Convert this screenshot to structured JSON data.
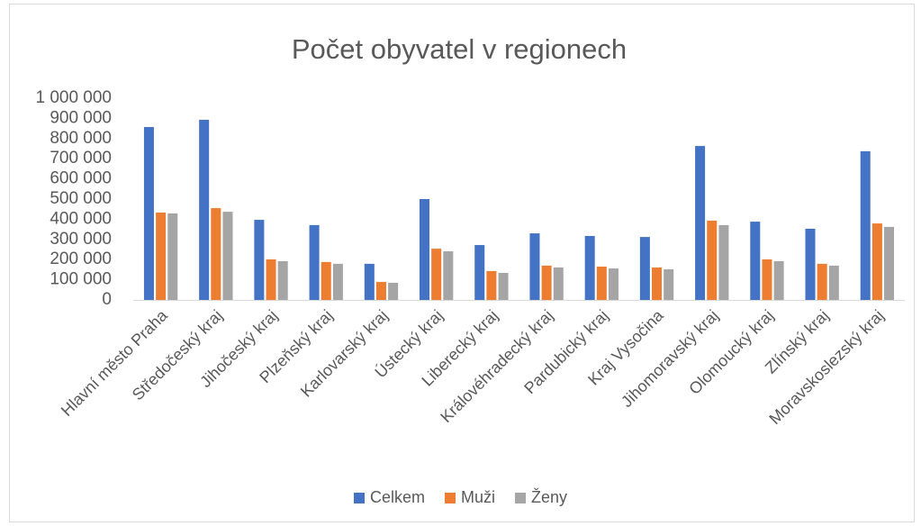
{
  "chart_data": {
    "type": "bar",
    "title": "Počet obyvatel v regionech",
    "categories": [
      "Hlavní město Praha",
      "Středočeský kraj",
      "Jihočeský kraj",
      "Plzeňský kraj",
      "Karlovarský kraj",
      "Ústecký kraj",
      "Liberecký kraj",
      "Královéhradecký kraj",
      "Pardubický kraj",
      "Kraj Vysočina",
      "Jihomoravský kraj",
      "Olomoucký kraj",
      "Zlínský kraj",
      "Moravskoslezský kraj"
    ],
    "series": [
      {
        "name": "Celkem",
        "color": "#4472c4",
        "values": [
          857000,
          893000,
          397000,
          371000,
          179000,
          500000,
          272000,
          330000,
          317000,
          312000,
          763000,
          388000,
          353000,
          737000
        ]
      },
      {
        "name": "Muži",
        "color": "#ed7d31",
        "values": [
          433000,
          455000,
          201000,
          188000,
          89000,
          254000,
          143000,
          170000,
          165000,
          161000,
          393000,
          201000,
          179000,
          379000
        ]
      },
      {
        "name": "Ženy",
        "color": "#a5a5a5",
        "values": [
          429000,
          437000,
          192000,
          179000,
          85000,
          241000,
          134000,
          161000,
          156000,
          152000,
          371000,
          192000,
          170000,
          362000
        ]
      }
    ],
    "ylim": [
      0,
      1000000
    ],
    "yticks": [
      0,
      {
        "value": 100000,
        "label": "100 000"
      },
      {
        "value": 200000,
        "label": "200 000"
      },
      {
        "value": 300000,
        "label": "300 000"
      },
      {
        "value": 400000,
        "label": "400 000"
      },
      {
        "value": 500000,
        "label": "500 000"
      },
      {
        "value": 600000,
        "label": "600 000"
      },
      {
        "value": 700000,
        "label": "700 000"
      },
      {
        "value": 800000,
        "label": "800 000"
      },
      {
        "value": 900000,
        "label": "900 000"
      },
      {
        "value": 1000000,
        "label": "1 000 000"
      }
    ],
    "grid": false,
    "legend": "bottom"
  }
}
